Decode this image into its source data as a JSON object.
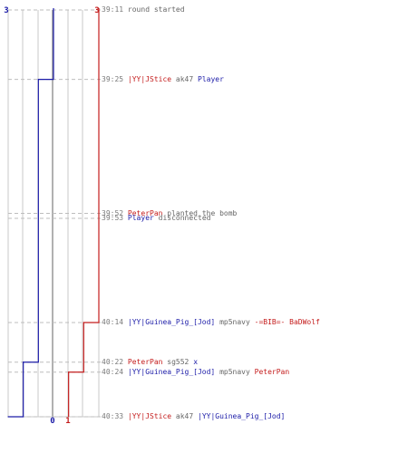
{
  "colors": {
    "blue_team": "#1c1ca8",
    "red_team": "#c41c1c",
    "grid": "#c8c8c8",
    "time": "#7a7a7a",
    "text": "#666666"
  },
  "counts": {
    "blue_start": "3",
    "red_start": "3",
    "blue_end": "0",
    "red_end": "1"
  },
  "events": [
    {
      "time": "39:11",
      "parts": [
        {
          "text": "round started",
          "team": "none"
        }
      ]
    },
    {
      "time": "39:25",
      "parts": [
        {
          "text": "|YY|JStice",
          "team": "red"
        },
        {
          "text": "ak47",
          "team": "none"
        },
        {
          "text": "Player",
          "team": "blue"
        }
      ]
    },
    {
      "time": "39:52",
      "parts": [
        {
          "text": "PeterPan",
          "team": "red"
        },
        {
          "text": "planted the bomb",
          "team": "none"
        }
      ]
    },
    {
      "time": "39:53",
      "parts": [
        {
          "text": "Player",
          "team": "blue"
        },
        {
          "text": "disconnected",
          "team": "none"
        }
      ]
    },
    {
      "time": "40:14",
      "parts": [
        {
          "text": "|YY|Guinea_Pig_[Jod]",
          "team": "blue"
        },
        {
          "text": "mp5navy",
          "team": "none"
        },
        {
          "text": "-=BIB=- BaDWolf",
          "team": "red"
        }
      ]
    },
    {
      "time": "40:22",
      "parts": [
        {
          "text": "PeterPan",
          "team": "red"
        },
        {
          "text": "sg552",
          "team": "none"
        },
        {
          "text": "x",
          "team": "blue"
        }
      ]
    },
    {
      "time": "40:24",
      "parts": [
        {
          "text": "|YY|Guinea_Pig_[Jod]",
          "team": "blue"
        },
        {
          "text": "mp5navy",
          "team": "none"
        },
        {
          "text": "PeterPan",
          "team": "red"
        }
      ]
    },
    {
      "time": "40:33",
      "parts": [
        {
          "text": "|YY|JStice",
          "team": "red"
        },
        {
          "text": "ak47",
          "team": "none"
        },
        {
          "text": "|YY|Guinea_Pig_[Jod]",
          "team": "blue"
        }
      ]
    }
  ],
  "chart_data": {
    "type": "line",
    "x_label": "",
    "y_label": "",
    "x_range": [
      0,
      3
    ],
    "time_start": "39:11",
    "time_end": "40:33",
    "series": [
      {
        "team": "blue",
        "points": [
          [
            "39:11",
            3
          ],
          [
            "39:25",
            2
          ],
          [
            "40:22",
            1
          ],
          [
            "40:33",
            0
          ]
        ]
      },
      {
        "team": "red",
        "points": [
          [
            "39:11",
            3
          ],
          [
            "40:14",
            2
          ],
          [
            "40:24",
            1
          ]
        ]
      }
    ]
  }
}
